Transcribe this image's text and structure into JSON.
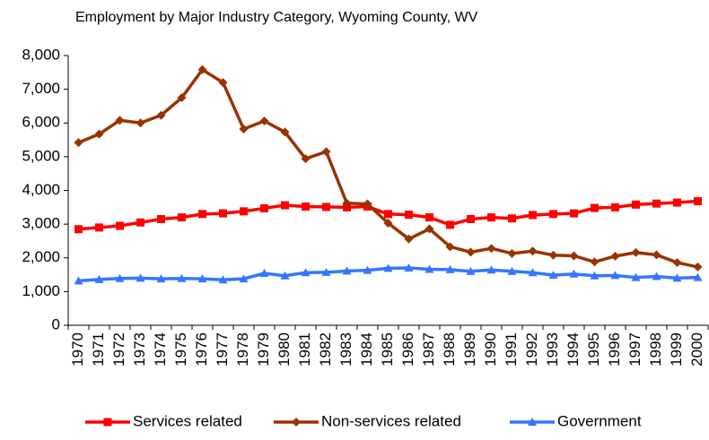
{
  "chart_data": {
    "type": "line",
    "title": "Employment by Major Industry Category, Wyoming County, WV",
    "categories": [
      "1970",
      "1971",
      "1972",
      "1973",
      "1974",
      "1975",
      "1976",
      "1977",
      "1978",
      "1979",
      "1980",
      "1981",
      "1982",
      "1983",
      "1984",
      "1985",
      "1986",
      "1987",
      "1988",
      "1989",
      "1990",
      "1991",
      "1992",
      "1993",
      "1994",
      "1995",
      "1996",
      "1997",
      "1998",
      "1999",
      "2000"
    ],
    "series": [
      {
        "name": "Services related",
        "color": "#ff0000",
        "marker": "square",
        "values": [
          2850,
          2900,
          2950,
          3050,
          3150,
          3200,
          3300,
          3320,
          3380,
          3470,
          3560,
          3520,
          3510,
          3500,
          3520,
          3300,
          3280,
          3200,
          2980,
          3150,
          3200,
          3170,
          3270,
          3300,
          3320,
          3480,
          3500,
          3580,
          3610,
          3640,
          3680
        ]
      },
      {
        "name": "Non-services related",
        "color": "#993300",
        "marker": "diamond",
        "values": [
          5420,
          5670,
          6080,
          6000,
          6230,
          6750,
          7580,
          7200,
          5820,
          6060,
          5730,
          4940,
          5150,
          3620,
          3600,
          3030,
          2560,
          2860,
          2330,
          2170,
          2280,
          2130,
          2200,
          2080,
          2060,
          1880,
          2050,
          2160,
          2090,
          1860,
          1730
        ]
      },
      {
        "name": "Government",
        "color": "#3377ff",
        "marker": "triangle",
        "values": [
          1320,
          1360,
          1390,
          1400,
          1380,
          1390,
          1380,
          1350,
          1380,
          1540,
          1470,
          1560,
          1570,
          1610,
          1630,
          1690,
          1700,
          1660,
          1650,
          1600,
          1640,
          1600,
          1560,
          1490,
          1520,
          1470,
          1480,
          1420,
          1450,
          1400,
          1420
        ]
      }
    ],
    "ylim": [
      0,
      8000
    ],
    "yticks": [
      0,
      {
        "value": 1000,
        "label": "1,000"
      },
      {
        "value": 2000,
        "label": "2,000"
      },
      {
        "value": 3000,
        "label": "3,000"
      },
      {
        "value": 4000,
        "label": "4,000"
      },
      {
        "value": 5000,
        "label": "5,000"
      },
      {
        "value": 6000,
        "label": "6,000"
      },
      {
        "value": 7000,
        "label": "7,000"
      },
      {
        "value": 8000,
        "label": "8,000"
      }
    ],
    "grid": false,
    "legend": "bottom"
  }
}
